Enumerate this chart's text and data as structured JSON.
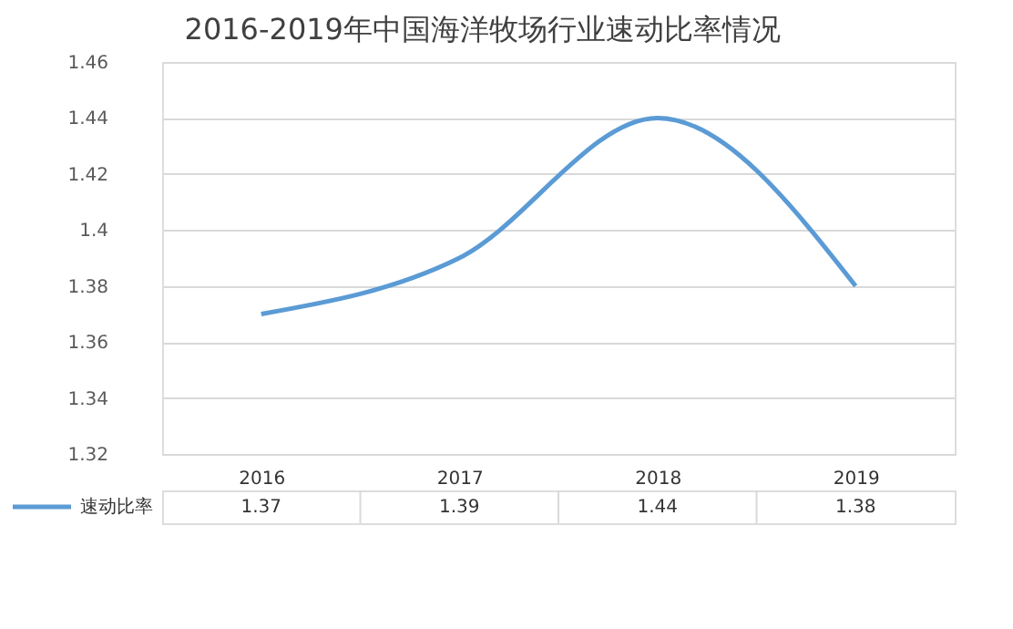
{
  "chart_data": {
    "type": "line",
    "title": "2016-2019年中国海洋牧场行业速动比率情况",
    "categories": [
      "2016",
      "2017",
      "2018",
      "2019"
    ],
    "series": [
      {
        "name": "速动比率",
        "color": "#5b9bd5",
        "values": [
          1.37,
          1.39,
          1.44,
          1.38
        ]
      }
    ],
    "ylim": [
      1.32,
      1.46
    ],
    "yticks": [
      1.32,
      1.34,
      1.36,
      1.38,
      1.4,
      1.42,
      1.44,
      1.46
    ],
    "grid": "y",
    "legend": "bottom",
    "data_labels": true,
    "marker": "none",
    "line_style": "solid"
  }
}
